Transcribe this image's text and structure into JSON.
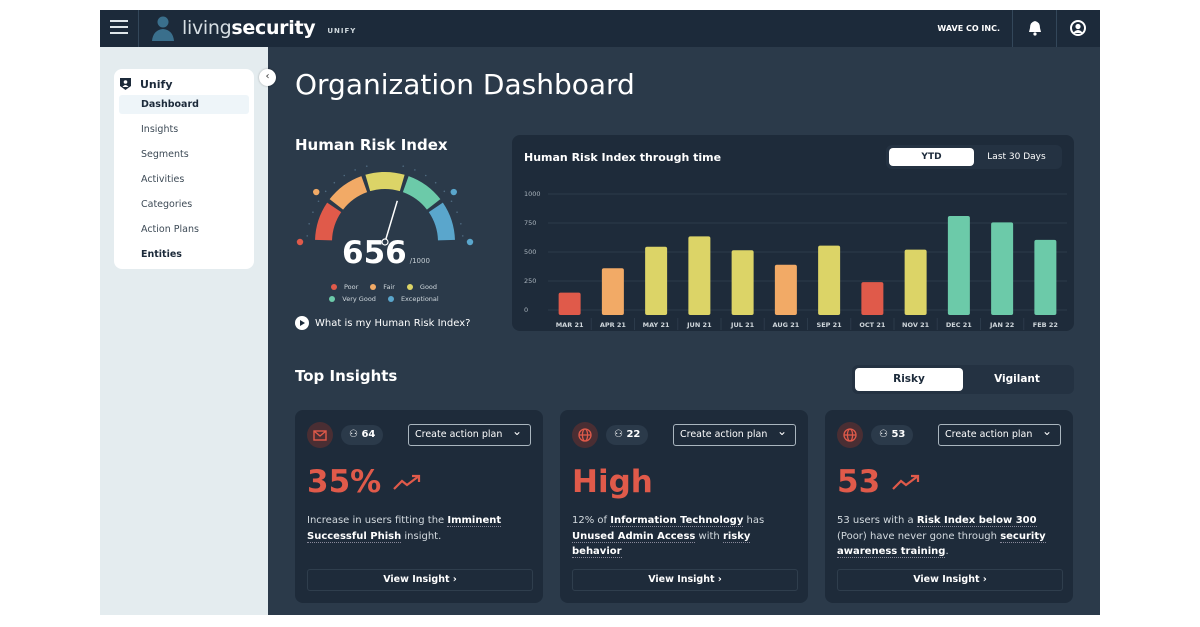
{
  "header": {
    "brand_light": "living",
    "brand_bold": "security",
    "product": "UNIFY",
    "org": "WAVE CO INC."
  },
  "sidebar": {
    "section": "Unify",
    "items": [
      {
        "label": "Dashboard",
        "active": true
      },
      {
        "label": "Insights"
      },
      {
        "label": "Segments"
      },
      {
        "label": "Activities"
      },
      {
        "label": "Categories"
      },
      {
        "label": "Action Plans"
      },
      {
        "label": "Entities",
        "bold": true
      }
    ]
  },
  "page": {
    "title": "Organization Dashboard"
  },
  "hri": {
    "title": "Human Risk Index",
    "score": "656",
    "max": "/1000",
    "score_value": 656,
    "legend": [
      {
        "label": "Poor",
        "color": "#e05a4a"
      },
      {
        "label": "Fair",
        "color": "#f2aa66"
      },
      {
        "label": "Good",
        "color": "#dcd467"
      },
      {
        "label": "Very Good",
        "color": "#6ccaa9"
      },
      {
        "label": "Exceptional",
        "color": "#5aa6cc"
      }
    ],
    "help": "What is my Human Risk Index?"
  },
  "chart_data": {
    "type": "bar",
    "title": "Human Risk Index through time",
    "toggle": {
      "options": [
        "YTD",
        "Last 30 Days"
      ],
      "selected": "YTD"
    },
    "categories": [
      "MAR 21",
      "APR 21",
      "MAY 21",
      "JUN 21",
      "JUL 21",
      "AUG 21",
      "SEP 21",
      "OCT 21",
      "NOV 21",
      "DEC 21",
      "JAN 22",
      "FEB 22"
    ],
    "values": [
      150,
      360,
      545,
      635,
      515,
      390,
      555,
      240,
      520,
      810,
      755,
      605
    ],
    "colors": [
      "#e05a4a",
      "#f2aa66",
      "#dcd467",
      "#dcd467",
      "#dcd467",
      "#f2aa66",
      "#dcd467",
      "#e05a4a",
      "#dcd467",
      "#6ccaa9",
      "#6ccaa9",
      "#6ccaa9"
    ],
    "yticks": [
      "0",
      "250",
      "500",
      "750",
      "1000"
    ],
    "ylim": [
      0,
      1000
    ],
    "grid": true
  },
  "insights": {
    "title": "Top Insights",
    "toggle": [
      "Risky",
      "Vigilant"
    ],
    "selected": "Risky",
    "cards": [
      {
        "icon": "mail-icon",
        "count": "64",
        "action": "Create action plan",
        "headline": "35%",
        "trend": "up",
        "parts": [
          {
            "t": "Increase in users fitting the "
          },
          {
            "t": "Imminent Successful Phish",
            "b": true
          },
          {
            "t": " insight."
          }
        ],
        "link": "View Insight"
      },
      {
        "icon": "globe-icon",
        "count": "22",
        "action": "Create action plan",
        "headline": "High",
        "parts": [
          {
            "t": "12% of "
          },
          {
            "t": "Information Technology",
            "b": true
          },
          {
            "t": " has "
          },
          {
            "t": "Unused Admin Access",
            "b": true
          },
          {
            "t": " with "
          },
          {
            "t": "risky behavior",
            "b": true
          }
        ],
        "link": "View Insight"
      },
      {
        "icon": "globe-icon",
        "count": "53",
        "action": "Create action plan",
        "headline": "53",
        "trend": "up",
        "parts": [
          {
            "t": "53 users with a "
          },
          {
            "t": "Risk Index below 300",
            "b": true
          },
          {
            "t": " (Poor) have never gone through "
          },
          {
            "t": "security awareness training",
            "b": true
          },
          {
            "t": "."
          }
        ],
        "link": "View Insight"
      }
    ]
  }
}
